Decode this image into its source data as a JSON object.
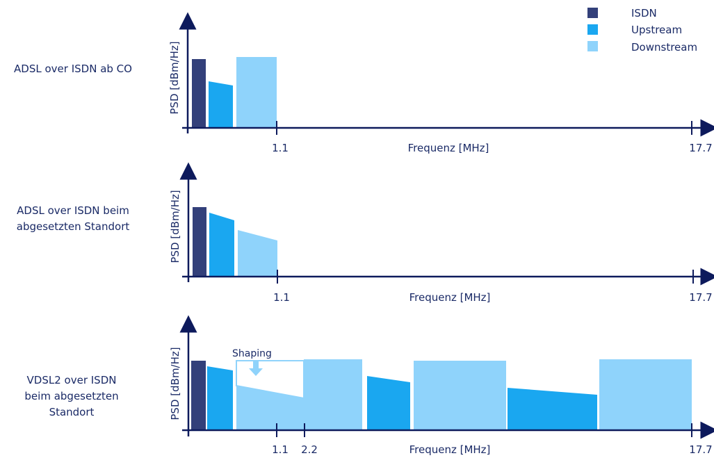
{
  "legend": [
    {
      "label": "ISDN",
      "color": "#33407a"
    },
    {
      "label": "Upstream",
      "color": "#1aa7f0"
    },
    {
      "label": "Downstream",
      "color": "#8fd3fb"
    }
  ],
  "panels": [
    {
      "row_label": [
        "ADSL over ISDN ab CO"
      ],
      "y_axis_label": "PSD [dBm/Hz]",
      "x_axis_label": "Frequenz [MHz]",
      "ticks": [
        "1.1",
        "17.7"
      ]
    },
    {
      "row_label": [
        "ADSL over ISDN beim",
        "abgesetzten Standort"
      ],
      "y_axis_label": "PSD [dBm/Hz]",
      "x_axis_label": "Frequenz [MHz]",
      "ticks": [
        "1.1",
        "17.7"
      ]
    },
    {
      "row_label": [
        "VDSL2 over ISDN",
        "beim abgesetzten",
        "Standort"
      ],
      "y_axis_label": "PSD [dBm/Hz]",
      "x_axis_label": "Frequenz [MHz]",
      "ticks": [
        "1.1",
        "2.2",
        "17.7"
      ],
      "annotation": "Shaping"
    }
  ]
}
